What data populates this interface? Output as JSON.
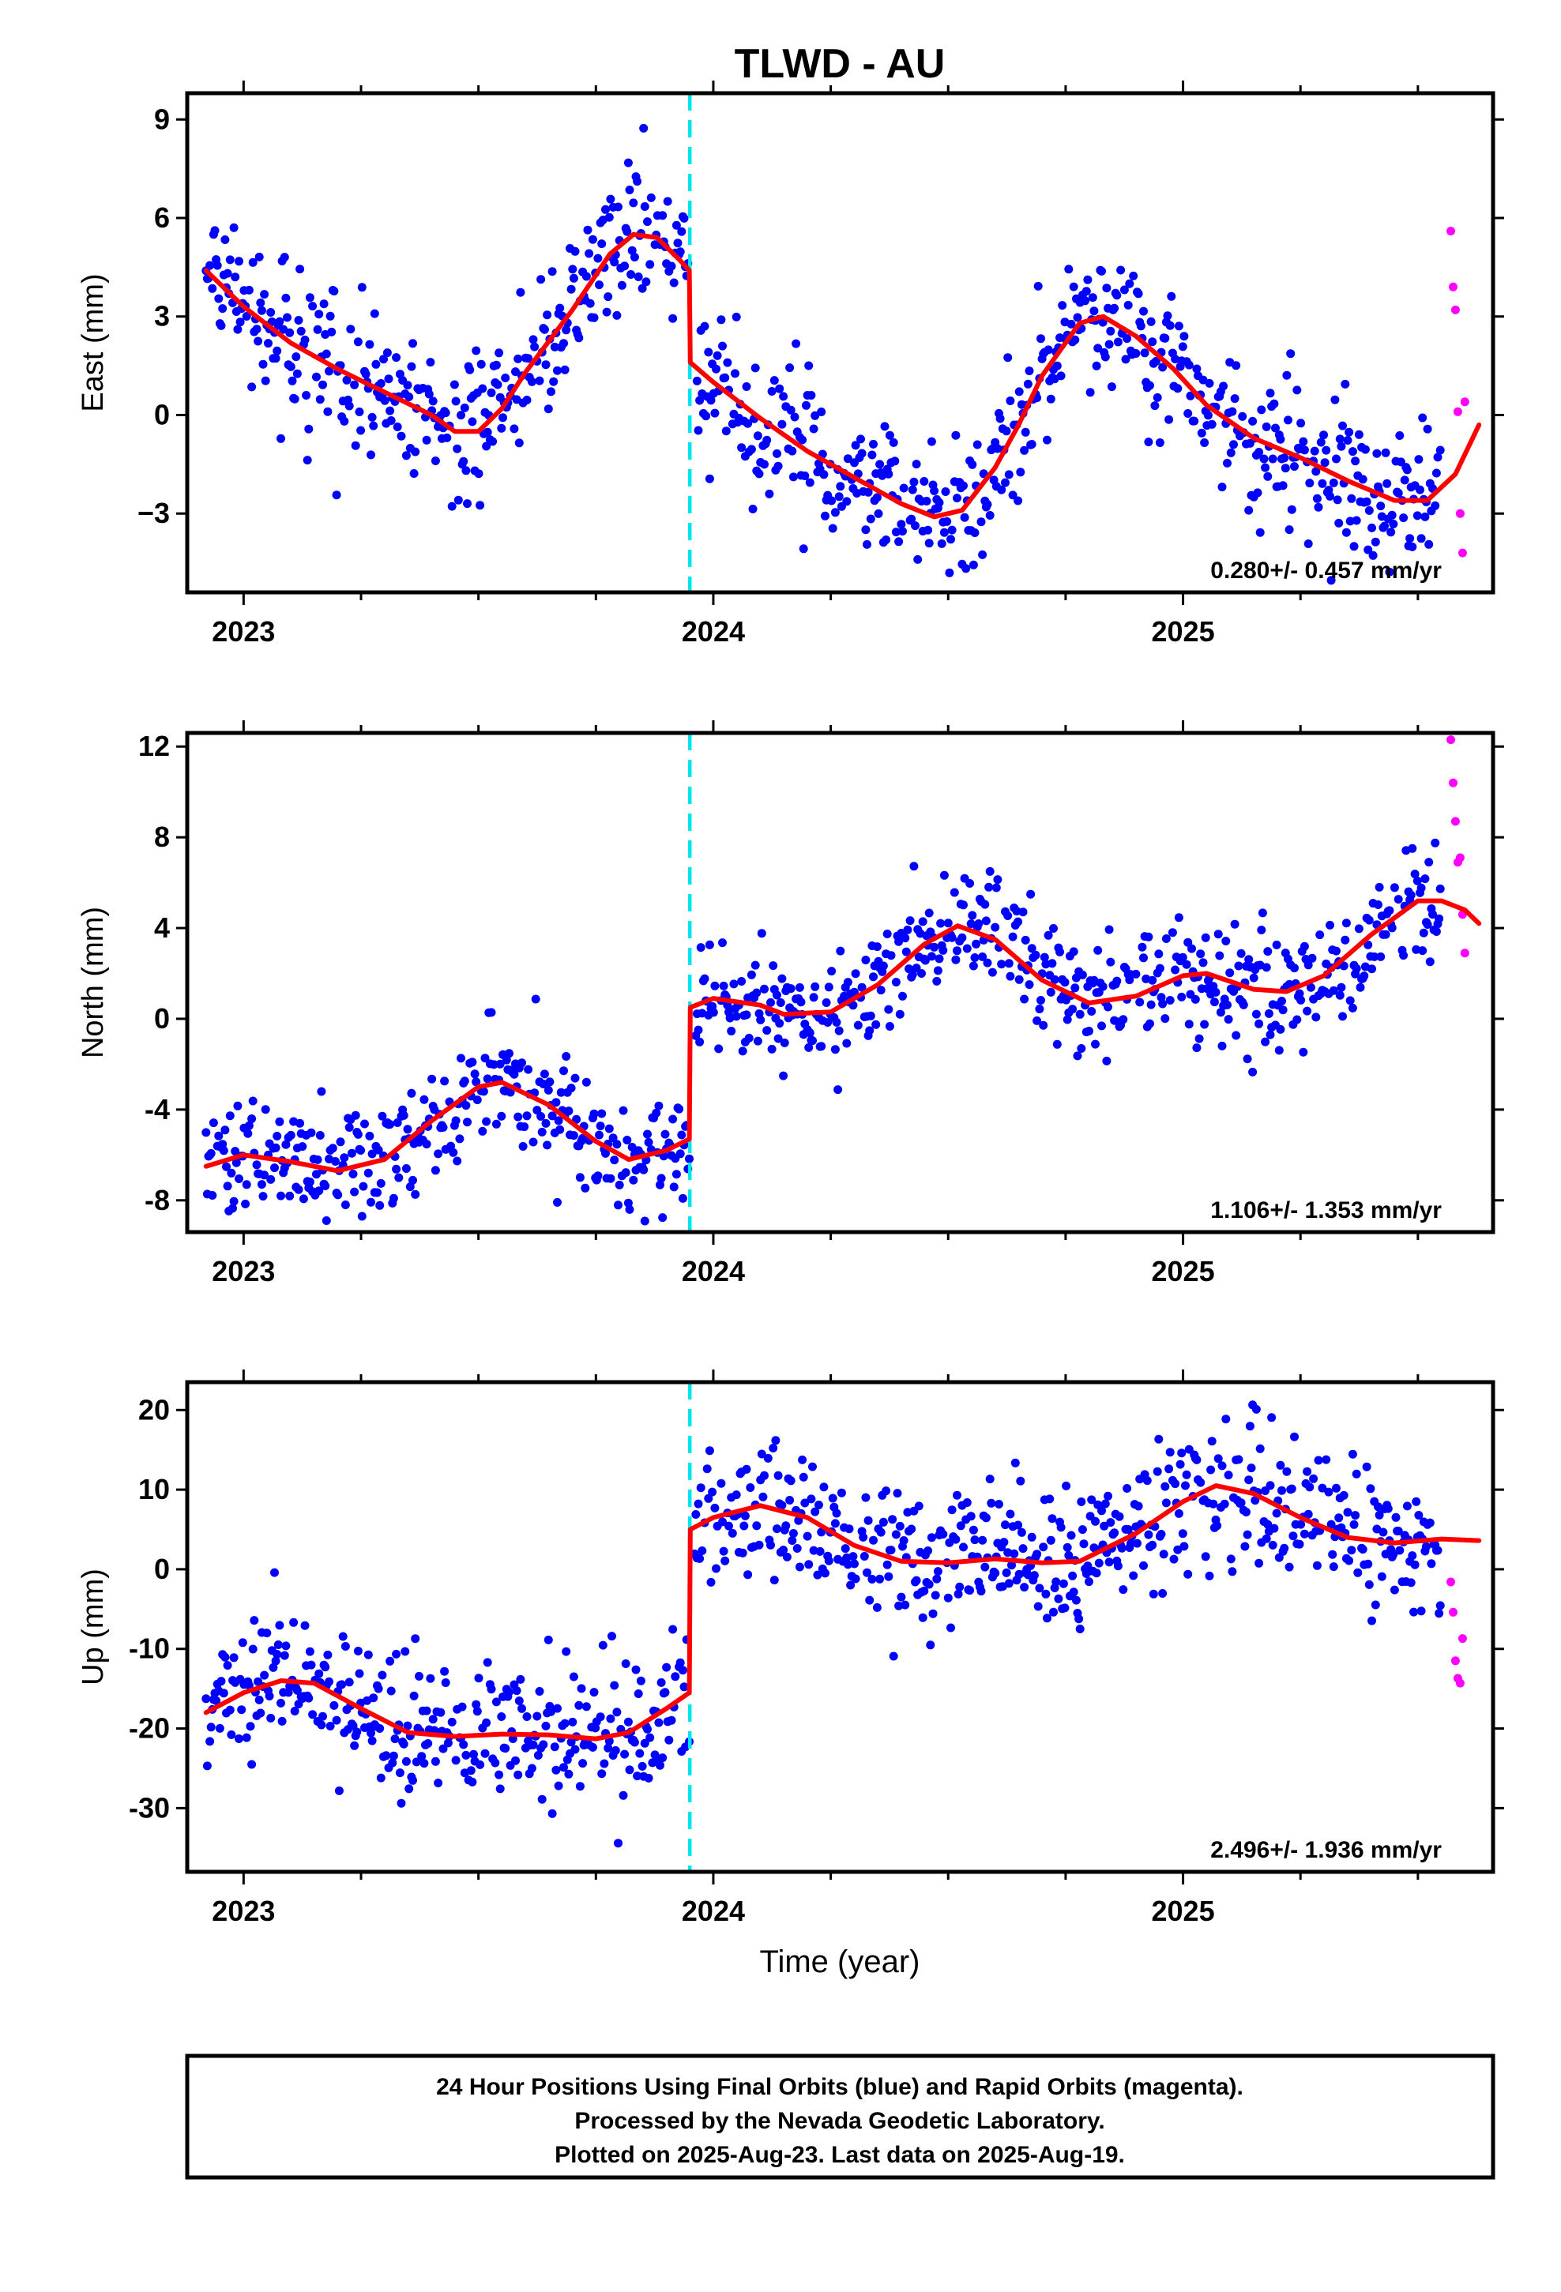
{
  "title": "TLWD - AU",
  "xlabel": "Time (year)",
  "footer": {
    "line1": "24 Hour Positions Using Final Orbits (blue) and Rapid Orbits (magenta).",
    "line2": "Processed by the Nevada Geodetic Laboratory.",
    "line3": "Plotted on 2025-Aug-23. Last data on 2025-Aug-19."
  },
  "colors": {
    "final": "#0000ff",
    "rapid": "#ff00ff",
    "model": "#ff0000",
    "step": "#00e5ee",
    "frame": "#000000"
  },
  "chart_data": [
    {
      "type": "scatter",
      "id": "east",
      "ylabel": "East (mm)",
      "rate": "0.280+/- 0.457 mm/yr",
      "xlim": [
        2022.88,
        2025.66
      ],
      "ylim": [
        -5.4,
        9.8
      ],
      "yticks": [
        -3,
        0,
        3,
        6,
        9
      ],
      "ytick_labels": [
        "−3",
        "0",
        "3",
        "6",
        "9"
      ],
      "xticks": [
        2023,
        2024,
        2025
      ],
      "xtick_labels": [
        "2023",
        "2024",
        "2025"
      ],
      "step_x": 2023.95,
      "model_knots": [
        [
          2022.92,
          4.4
        ],
        [
          2023.0,
          3.3
        ],
        [
          2023.1,
          2.2
        ],
        [
          2023.2,
          1.4
        ],
        [
          2023.3,
          0.7
        ],
        [
          2023.4,
          0.0
        ],
        [
          2023.45,
          -0.5
        ],
        [
          2023.5,
          -0.5
        ],
        [
          2023.55,
          0.2
        ],
        [
          2023.6,
          1.3
        ],
        [
          2023.7,
          3.2
        ],
        [
          2023.78,
          4.9
        ],
        [
          2023.83,
          5.5
        ],
        [
          2023.88,
          5.4
        ],
        [
          2023.93,
          4.7
        ],
        [
          2023.949,
          4.4
        ],
        [
          2023.951,
          1.6
        ],
        [
          2024.0,
          1.0
        ],
        [
          2024.1,
          -0.1
        ],
        [
          2024.2,
          -1.1
        ],
        [
          2024.3,
          -1.9
        ],
        [
          2024.4,
          -2.7
        ],
        [
          2024.47,
          -3.1
        ],
        [
          2024.53,
          -2.9
        ],
        [
          2024.6,
          -1.6
        ],
        [
          2024.65,
          -0.3
        ],
        [
          2024.7,
          1.2
        ],
        [
          2024.78,
          2.8
        ],
        [
          2024.83,
          3.0
        ],
        [
          2024.9,
          2.4
        ],
        [
          2024.98,
          1.4
        ],
        [
          2025.05,
          0.3
        ],
        [
          2025.15,
          -0.7
        ],
        [
          2025.25,
          -1.3
        ],
        [
          2025.35,
          -2.0
        ],
        [
          2025.45,
          -2.6
        ],
        [
          2025.52,
          -2.6
        ],
        [
          2025.58,
          -1.8
        ],
        [
          2025.63,
          -0.3
        ]
      ],
      "amp": 1.1,
      "ranges": [
        [
          2022.92,
          2023.95
        ],
        [
          2023.96,
          2025.55
        ]
      ],
      "rapid": {
        "x": [
          2025.57,
          2025.575,
          2025.58,
          2025.585,
          2025.59,
          2025.595,
          2025.6
        ],
        "y": [
          5.6,
          3.9,
          3.2,
          0.1,
          -3.0,
          -4.2,
          0.4
        ]
      }
    },
    {
      "type": "scatter",
      "id": "north",
      "ylabel": "North (mm)",
      "rate": "1.106+/- 1.353 mm/yr",
      "xlim": [
        2022.88,
        2025.66
      ],
      "ylim": [
        -9.4,
        12.6
      ],
      "yticks": [
        -8,
        -4,
        0,
        4,
        8,
        12
      ],
      "ytick_labels": [
        "-8",
        "-4",
        "0",
        "4",
        "8",
        "12"
      ],
      "xticks": [
        2023,
        2024,
        2025
      ],
      "xtick_labels": [
        "2023",
        "2024",
        "2025"
      ],
      "step_x": 2023.95,
      "model_knots": [
        [
          2022.92,
          -6.5
        ],
        [
          2023.0,
          -6.0
        ],
        [
          2023.1,
          -6.3
        ],
        [
          2023.2,
          -6.7
        ],
        [
          2023.3,
          -6.2
        ],
        [
          2023.4,
          -4.5
        ],
        [
          2023.5,
          -3.0
        ],
        [
          2023.55,
          -2.8
        ],
        [
          2023.65,
          -3.8
        ],
        [
          2023.75,
          -5.4
        ],
        [
          2023.82,
          -6.2
        ],
        [
          2023.9,
          -5.8
        ],
        [
          2023.949,
          -5.3
        ],
        [
          2023.951,
          0.5
        ],
        [
          2024.0,
          0.9
        ],
        [
          2024.1,
          0.6
        ],
        [
          2024.15,
          0.2
        ],
        [
          2024.25,
          0.3
        ],
        [
          2024.35,
          1.5
        ],
        [
          2024.45,
          3.3
        ],
        [
          2024.52,
          4.1
        ],
        [
          2024.6,
          3.5
        ],
        [
          2024.7,
          1.7
        ],
        [
          2024.8,
          0.7
        ],
        [
          2024.9,
          1.0
        ],
        [
          2025.0,
          1.9
        ],
        [
          2025.05,
          2.0
        ],
        [
          2025.15,
          1.3
        ],
        [
          2025.22,
          1.2
        ],
        [
          2025.3,
          1.9
        ],
        [
          2025.4,
          3.7
        ],
        [
          2025.5,
          5.2
        ],
        [
          2025.55,
          5.2
        ],
        [
          2025.6,
          4.8
        ],
        [
          2025.63,
          4.2
        ]
      ],
      "amp": 1.3,
      "ranges": [
        [
          2022.92,
          2023.95
        ],
        [
          2023.96,
          2025.55
        ]
      ],
      "rapid": {
        "x": [
          2025.57,
          2025.575,
          2025.58,
          2025.585,
          2025.59,
          2025.595,
          2025.6
        ],
        "y": [
          12.3,
          10.4,
          8.7,
          6.9,
          7.1,
          4.6,
          2.9
        ]
      }
    },
    {
      "type": "scatter",
      "id": "up",
      "ylabel": "Up (mm)",
      "rate": "2.496+/- 1.936 mm/yr",
      "xlim": [
        2022.88,
        2025.66
      ],
      "ylim": [
        -38,
        23.5
      ],
      "yticks": [
        -30,
        -20,
        -10,
        0,
        10,
        20
      ],
      "ytick_labels": [
        "-30",
        "-20",
        "-10",
        "0",
        "10",
        "20"
      ],
      "xticks": [
        2023,
        2024,
        2025
      ],
      "xtick_labels": [
        "2023",
        "2024",
        "2025"
      ],
      "step_x": 2023.95,
      "model_knots": [
        [
          2022.92,
          -18.0
        ],
        [
          2023.0,
          -15.5
        ],
        [
          2023.08,
          -14.0
        ],
        [
          2023.15,
          -14.3
        ],
        [
          2023.25,
          -17.5
        ],
        [
          2023.35,
          -20.5
        ],
        [
          2023.45,
          -21.0
        ],
        [
          2023.55,
          -20.7
        ],
        [
          2023.65,
          -20.8
        ],
        [
          2023.75,
          -21.3
        ],
        [
          2023.82,
          -20.5
        ],
        [
          2023.9,
          -17.5
        ],
        [
          2023.949,
          -15.5
        ],
        [
          2023.951,
          5.0
        ],
        [
          2024.0,
          6.5
        ],
        [
          2024.1,
          8.0
        ],
        [
          2024.2,
          6.5
        ],
        [
          2024.3,
          3.0
        ],
        [
          2024.4,
          1.0
        ],
        [
          2024.5,
          0.8
        ],
        [
          2024.6,
          1.3
        ],
        [
          2024.7,
          0.8
        ],
        [
          2024.78,
          1.0
        ],
        [
          2024.9,
          4.5
        ],
        [
          2025.0,
          8.5
        ],
        [
          2025.07,
          10.5
        ],
        [
          2025.15,
          9.5
        ],
        [
          2025.25,
          6.5
        ],
        [
          2025.35,
          4.0
        ],
        [
          2025.45,
          3.3
        ],
        [
          2025.55,
          3.8
        ],
        [
          2025.63,
          3.6
        ]
      ],
      "amp": 4.5,
      "ranges": [
        [
          2022.92,
          2023.95
        ],
        [
          2023.96,
          2025.55
        ]
      ],
      "rapid": {
        "x": [
          2025.57,
          2025.575,
          2025.58,
          2025.585,
          2025.59,
          2025.595
        ],
        "y": [
          -1.6,
          -5.4,
          -11.5,
          -13.7,
          -14.3,
          -8.7
        ]
      }
    }
  ]
}
